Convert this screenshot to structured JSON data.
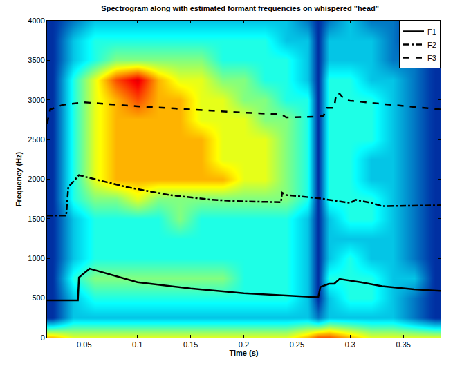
{
  "chart_data": {
    "type": "heatmap",
    "title": "Spectrogram along with estimated formant frequencies on whispered \"head\"",
    "x_label": "Time (s)",
    "y_label": "Frequency (Hz)",
    "xlim": [
      0.015,
      0.385
    ],
    "ylim": [
      0,
      4000
    ],
    "xticks": [
      0.05,
      0.1,
      0.15,
      0.2,
      0.25,
      0.3,
      0.35
    ],
    "yticks": [
      0,
      500,
      1000,
      1500,
      2000,
      2500,
      3000,
      3500,
      4000
    ],
    "grid": false,
    "legend": "upper right",
    "color": "Jet",
    "zlim": [
      0,
      10
    ],
    "x": [
      0.02,
      0.04,
      0.06,
      0.08,
      0.1,
      0.12,
      0.14,
      0.16,
      0.18,
      0.2,
      0.22,
      0.24,
      0.26,
      0.27,
      0.28,
      0.3,
      0.32,
      0.34,
      0.36,
      0.38
    ],
    "y": [
      0,
      250,
      500,
      750,
      1000,
      1250,
      1500,
      1750,
      2000,
      2250,
      2500,
      2750,
      3000,
      3250,
      3500,
      3750,
      4000
    ],
    "cells": [
      [
        7,
        6,
        6,
        6,
        6,
        6,
        6,
        6,
        6,
        6,
        6,
        6,
        7,
        8,
        8,
        7,
        6,
        6,
        6,
        6
      ],
      [
        1,
        3,
        3,
        3,
        3,
        3,
        3,
        3,
        3,
        3,
        3,
        3,
        3,
        2,
        3,
        3,
        3,
        3,
        2,
        1
      ],
      [
        1,
        3,
        4,
        4,
        4,
        4,
        4,
        4,
        4,
        4,
        4,
        4,
        3,
        1,
        3,
        4,
        4,
        3,
        2,
        1
      ],
      [
        1,
        4,
        5,
        5,
        5,
        5,
        5,
        5,
        5,
        4,
        4,
        4,
        3,
        1,
        4,
        4,
        4,
        3,
        3,
        1
      ],
      [
        1,
        3,
        4,
        4,
        4,
        4,
        4,
        4,
        4,
        4,
        4,
        4,
        3,
        1,
        3,
        4,
        3,
        3,
        2,
        1
      ],
      [
        1,
        3,
        4,
        4,
        4,
        4,
        4,
        4,
        4,
        4,
        4,
        4,
        3,
        1,
        3,
        3,
        3,
        3,
        2,
        1
      ],
      [
        1,
        3,
        4,
        4,
        4,
        4,
        5,
        4,
        4,
        4,
        4,
        4,
        3,
        1,
        3,
        4,
        4,
        3,
        2,
        1
      ],
      [
        1,
        4,
        5,
        5,
        6,
        5,
        5,
        5,
        5,
        5,
        5,
        5,
        4,
        1,
        4,
        4,
        4,
        3,
        2,
        1
      ],
      [
        1,
        4,
        6,
        7,
        7,
        7,
        7,
        7,
        7,
        6,
        6,
        5,
        4,
        1,
        4,
        4,
        3,
        3,
        2,
        1
      ],
      [
        1,
        4,
        6,
        7,
        7,
        7,
        7,
        7,
        6,
        6,
        6,
        5,
        4,
        1,
        4,
        4,
        3,
        3,
        2,
        1
      ],
      [
        1,
        4,
        6,
        7,
        7,
        7,
        7,
        7,
        6,
        6,
        6,
        5,
        4,
        1,
        4,
        4,
        4,
        3,
        2,
        1
      ],
      [
        1,
        4,
        6,
        7,
        7,
        7,
        7,
        6,
        6,
        6,
        5,
        5,
        4,
        1,
        4,
        4,
        4,
        3,
        2,
        1
      ],
      [
        1,
        4,
        6,
        7,
        8,
        7,
        7,
        6,
        6,
        5,
        5,
        4,
        4,
        1,
        4,
        4,
        4,
        3,
        2,
        1
      ],
      [
        1,
        4,
        6,
        8,
        9,
        7,
        6,
        6,
        5,
        5,
        4,
        4,
        3,
        1,
        4,
        4,
        3,
        3,
        2,
        1
      ],
      [
        1,
        3,
        4,
        5,
        5,
        5,
        5,
        5,
        4,
        4,
        4,
        4,
        3,
        1,
        3,
        3,
        3,
        2,
        2,
        1
      ],
      [
        1,
        3,
        4,
        4,
        4,
        4,
        4,
        4,
        4,
        4,
        4,
        3,
        3,
        1,
        3,
        3,
        3,
        2,
        1,
        1
      ],
      [
        1,
        2,
        3,
        3,
        3,
        3,
        3,
        3,
        3,
        3,
        3,
        3,
        2,
        1,
        2,
        3,
        2,
        2,
        1,
        1
      ]
    ],
    "series": [
      {
        "name": "F1",
        "color": "#000000",
        "type": "line",
        "line_style": "solid",
        "x": [
          0.015,
          0.044,
          0.045,
          0.055,
          0.1,
          0.15,
          0.2,
          0.25,
          0.27,
          0.272,
          0.28,
          0.285,
          0.29,
          0.31,
          0.33,
          0.36,
          0.385
        ],
        "values": [
          470,
          470,
          760,
          870,
          700,
          620,
          560,
          520,
          510,
          640,
          680,
          680,
          740,
          700,
          650,
          610,
          590
        ]
      },
      {
        "name": "F2",
        "color": "#000000",
        "type": "line",
        "line_style": "dashdot",
        "x": [
          0.015,
          0.033,
          0.035,
          0.045,
          0.06,
          0.09,
          0.13,
          0.17,
          0.2,
          0.235,
          0.236,
          0.24,
          0.27,
          0.29,
          0.3,
          0.305,
          0.32,
          0.33,
          0.385
        ],
        "values": [
          1540,
          1540,
          1900,
          2050,
          2000,
          1900,
          1800,
          1740,
          1720,
          1710,
          1830,
          1800,
          1760,
          1720,
          1700,
          1740,
          1700,
          1660,
          1670
        ]
      },
      {
        "name": "F3",
        "color": "#000000",
        "type": "line",
        "line_style": "dash",
        "x": [
          0.015,
          0.018,
          0.03,
          0.05,
          0.1,
          0.15,
          0.2,
          0.235,
          0.24,
          0.27,
          0.275,
          0.278,
          0.285,
          0.287,
          0.29,
          0.295,
          0.3,
          0.33,
          0.385
        ],
        "values": [
          2700,
          2880,
          2940,
          2970,
          2920,
          2880,
          2840,
          2820,
          2780,
          2790,
          2800,
          2900,
          2900,
          3090,
          3080,
          3000,
          2990,
          2950,
          2880
        ]
      }
    ]
  }
}
